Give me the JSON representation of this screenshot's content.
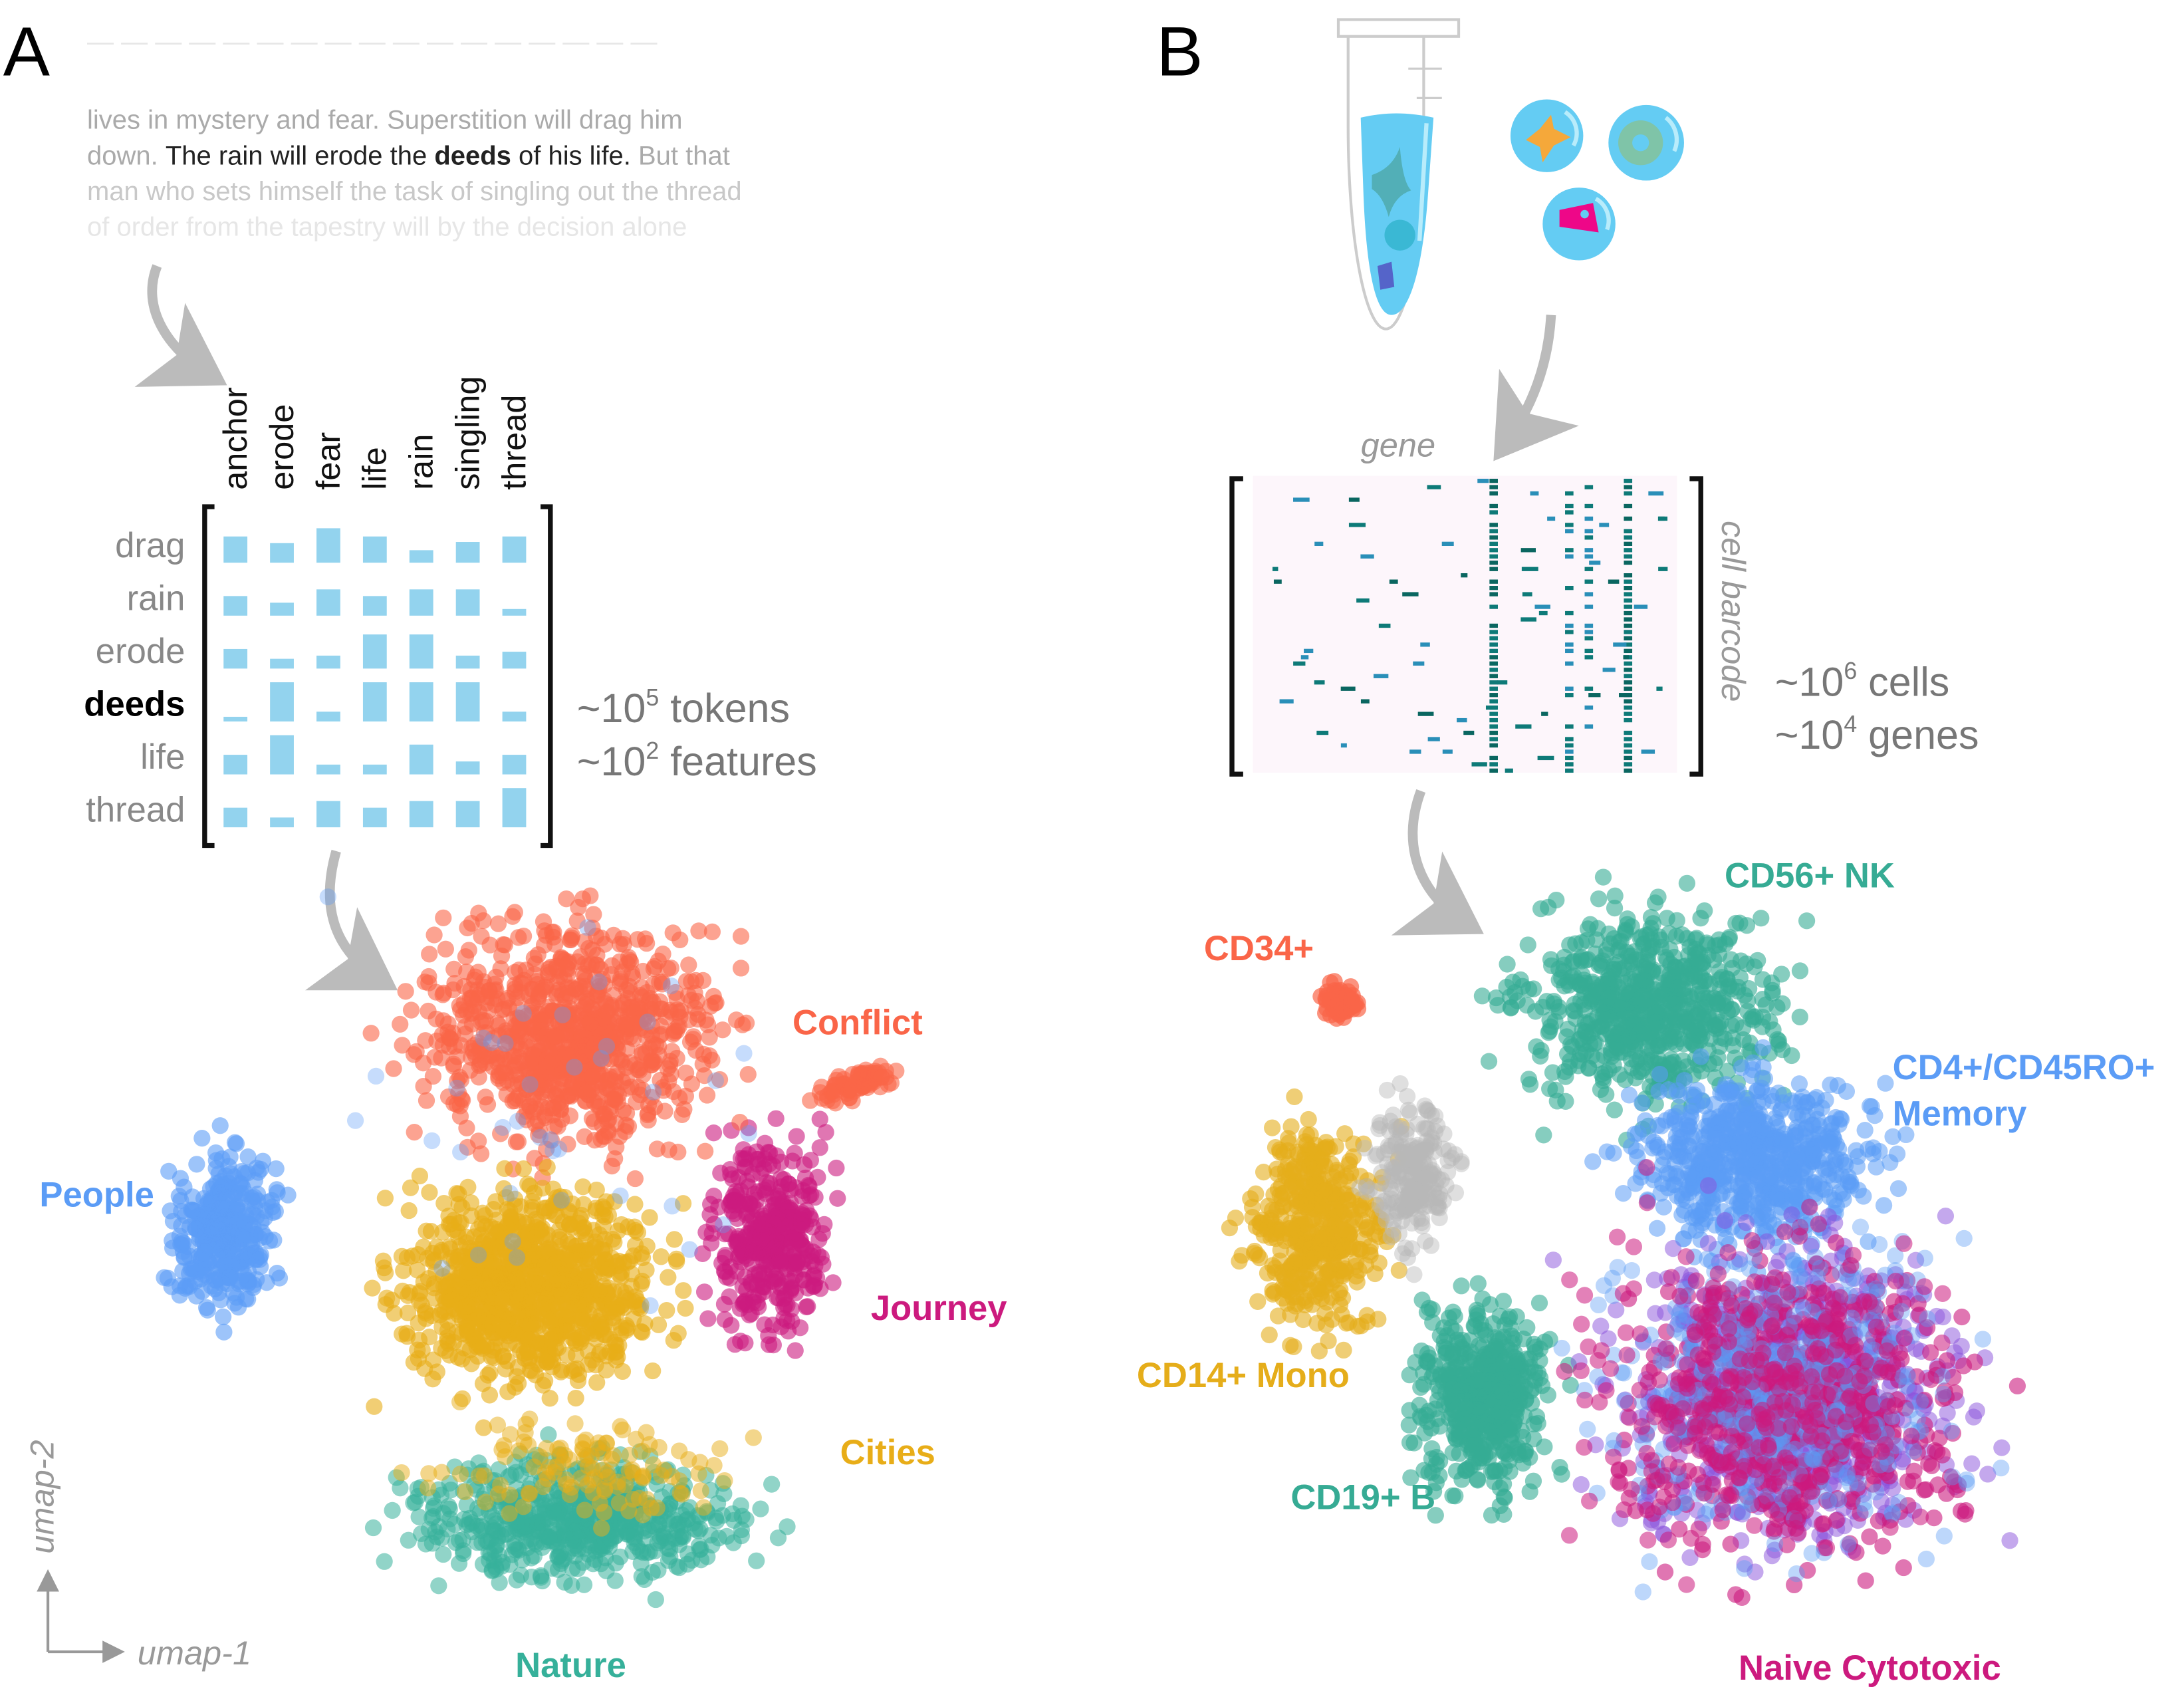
{
  "panel_a": {
    "letter": "A",
    "prose_lines": [
      {
        "parts": [
          {
            "t": "lives in mystery and fear. Superstition will drag him",
            "s": "mid"
          }
        ]
      },
      {
        "parts": [
          {
            "t": "down. ",
            "s": "mid"
          },
          {
            "t": "The rain will erode the ",
            "s": "dark"
          },
          {
            "t": "deeds",
            "s": "bold"
          },
          {
            "t": " of his life.",
            "s": "dark"
          },
          {
            "t": " But that",
            "s": "mid"
          }
        ]
      },
      {
        "parts": [
          {
            "t": "man who sets himself the task of singling out the thread",
            "s": "light"
          }
        ]
      },
      {
        "parts": [
          {
            "t": "of order from the tapestry will by the decision alone",
            "s": "faint"
          }
        ]
      }
    ],
    "matrix": {
      "columns": [
        "anchor",
        "erode",
        "fear",
        "life",
        "rain",
        "singling",
        "thread"
      ],
      "rows": [
        "drag",
        "rain",
        "erode",
        "deeds",
        "life",
        "thread"
      ],
      "highlight_row": "deeds",
      "values": [
        [
          0.67,
          0.5,
          0.88,
          0.67,
          0.32,
          0.53,
          0.67
        ],
        [
          0.5,
          0.33,
          0.67,
          0.5,
          0.67,
          0.67,
          0.17
        ],
        [
          0.5,
          0.25,
          0.33,
          0.87,
          0.87,
          0.33,
          0.43
        ],
        [
          0.12,
          1.0,
          0.25,
          1.0,
          1.0,
          1.0,
          0.25
        ],
        [
          0.5,
          1.0,
          0.25,
          0.25,
          0.76,
          0.33,
          0.5
        ],
        [
          0.5,
          0.25,
          0.67,
          0.5,
          0.67,
          0.67,
          1.0
        ]
      ],
      "bar_color": "#93d3ee"
    },
    "stats": {
      "tokens_base": "~10",
      "tokens_exp": "5",
      "tokens_unit": " tokens",
      "features_base": "~10",
      "features_exp": "2",
      "features_unit": " features"
    },
    "axes": {
      "x": "umap-1",
      "y": "umap-2"
    },
    "clusters": [
      {
        "label": "Conflict",
        "color": "#fa6548"
      },
      {
        "label": "People",
        "color": "#5b9cf6"
      },
      {
        "label": "Journey",
        "color": "#cc1a7e"
      },
      {
        "label": "Cities",
        "color": "#e8ad18"
      },
      {
        "label": "Nature",
        "color": "#36b09a"
      }
    ]
  },
  "panel_b": {
    "letter": "B",
    "matrix": {
      "col_label": "gene",
      "row_label": "cell barcode",
      "cell_colors": [
        "#2a8fb8",
        "#0e7a78",
        "#0a6660"
      ],
      "background": "#fdf6fb"
    },
    "stats": {
      "cells_base": "~10",
      "cells_exp": "6",
      "cells_unit": " cells",
      "genes_base": "~10",
      "genes_exp": "4",
      "genes_unit": " genes"
    },
    "clusters": [
      {
        "label": "CD56+ NK",
        "color": "#36ab94"
      },
      {
        "label": "CD34+",
        "color": "#fa6548"
      },
      {
        "label": "CD4+/CD45RO+",
        "label2": "Memory",
        "color": "#5b9cf6"
      },
      {
        "label": "CD14+ Mono",
        "color": "#e5ad1a"
      },
      {
        "label": "CD19+ B",
        "color": "#36ab94"
      },
      {
        "label": "Naive Cytotoxic",
        "color": "#cc1a7e"
      }
    ],
    "extra_colors": {
      "purple": "#8a52dc",
      "grey": "#b8b8b8"
    }
  }
}
